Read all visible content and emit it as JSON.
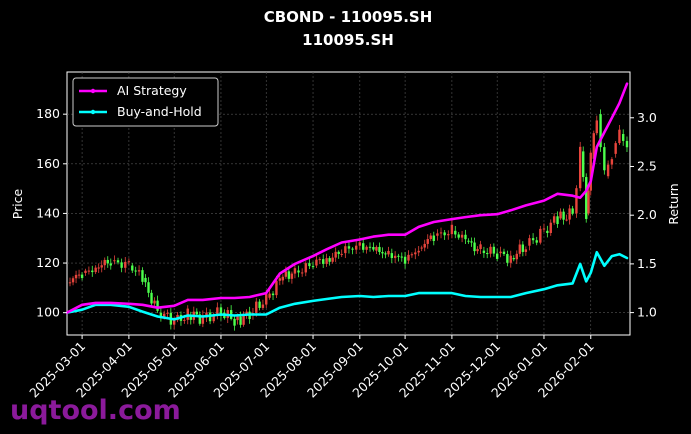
{
  "chart_data": {
    "type": "line",
    "title": "CBOND - 110095.SH",
    "subtitle": "110095.SH",
    "ylabel": "Price",
    "y2label": "Return",
    "ylim": [
      91,
      197
    ],
    "y2lim": [
      0.77,
      3.47
    ],
    "x_dates": [
      "2025-02-19",
      "2025-03-01",
      "2025-03-10",
      "2025-03-20",
      "2025-04-01",
      "2025-04-10",
      "2025-04-20",
      "2025-05-01",
      "2025-05-10",
      "2025-05-20",
      "2025-06-01",
      "2025-06-10",
      "2025-06-20",
      "2025-07-01",
      "2025-07-10",
      "2025-07-20",
      "2025-08-01",
      "2025-08-10",
      "2025-08-20",
      "2025-09-01",
      "2025-09-10",
      "2025-09-20",
      "2025-10-01",
      "2025-10-10",
      "2025-10-20",
      "2025-11-01",
      "2025-11-10",
      "2025-11-20",
      "2025-12-01",
      "2025-12-10",
      "2025-12-20",
      "2026-01-01",
      "2026-01-10",
      "2026-01-20",
      "2026-01-25",
      "2026-01-29",
      "2026-02-01",
      "2026-02-05",
      "2026-02-10",
      "2026-02-15",
      "2026-02-20",
      "2026-02-25"
    ],
    "price_close": [
      112,
      116,
      118,
      121,
      119,
      114,
      100,
      97,
      99,
      98,
      100,
      97,
      99,
      106,
      113,
      117,
      119,
      122,
      124,
      128,
      125,
      124,
      121,
      126,
      131,
      133,
      129,
      125,
      124,
      122,
      127,
      133,
      138,
      140,
      165,
      140,
      162,
      180,
      155,
      164,
      172,
      168
    ],
    "ai_strategy_return": [
      1.0,
      1.08,
      1.1,
      1.1,
      1.09,
      1.08,
      1.05,
      1.07,
      1.13,
      1.13,
      1.15,
      1.15,
      1.16,
      1.2,
      1.4,
      1.5,
      1.58,
      1.65,
      1.72,
      1.75,
      1.78,
      1.8,
      1.8,
      1.88,
      1.93,
      1.96,
      1.98,
      2.0,
      2.01,
      2.05,
      2.1,
      2.15,
      2.22,
      2.2,
      2.18,
      2.25,
      2.35,
      2.7,
      2.85,
      3.0,
      3.15,
      3.35
    ],
    "buy_and_hold_return": [
      1.0,
      1.03,
      1.08,
      1.08,
      1.06,
      1.01,
      0.96,
      0.93,
      0.97,
      0.96,
      0.98,
      0.97,
      0.98,
      0.98,
      1.05,
      1.09,
      1.12,
      1.14,
      1.16,
      1.17,
      1.16,
      1.17,
      1.17,
      1.2,
      1.2,
      1.2,
      1.17,
      1.16,
      1.16,
      1.16,
      1.2,
      1.24,
      1.28,
      1.3,
      1.5,
      1.32,
      1.41,
      1.62,
      1.48,
      1.58,
      1.6,
      1.56
    ],
    "y_ticks": [
      100,
      120,
      140,
      160,
      180
    ],
    "y2_ticks": [
      "1.0",
      "1.5",
      "2.0",
      "2.5",
      "3.0"
    ],
    "x_ticks": [
      "2025-03-01",
      "2025-04-01",
      "2025-05-01",
      "2025-06-01",
      "2025-07-01",
      "2025-08-01",
      "2025-09-01",
      "2025-10-01",
      "2025-11-01",
      "2025-12-01",
      "2026-01-01",
      "2026-02-01"
    ],
    "series": [
      {
        "name": "AI Strategy",
        "color": "#ff00ff"
      },
      {
        "name": "Buy-and-Hold",
        "color": "#00ffff"
      }
    ],
    "candle_up_color": "#e8453c",
    "candle_down_color": "#4cff4c",
    "grid": true,
    "legend_position": "top-left"
  },
  "watermark": "uqtool.com"
}
